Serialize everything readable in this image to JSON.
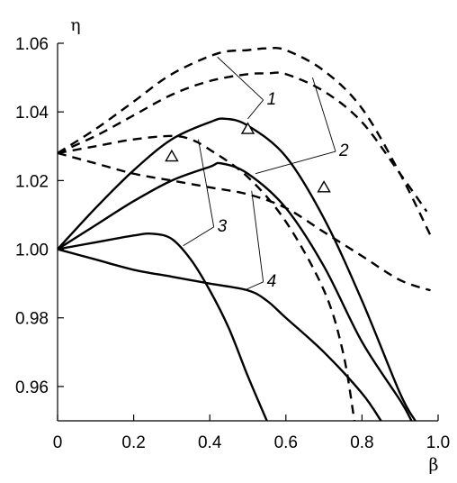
{
  "chart_data": {
    "type": "line",
    "title": "",
    "xlabel": "β",
    "ylabel": "η",
    "xlim": [
      0,
      1.0
    ],
    "ylim": [
      0.95,
      1.06
    ],
    "x_ticks": [
      0,
      0.2,
      0.4,
      0.6,
      0.8,
      1.0
    ],
    "x_tick_labels": [
      "0",
      "0.2",
      "0.4",
      "0.6",
      "0.8",
      "1.0"
    ],
    "y_ticks": [
      0.96,
      0.98,
      1.0,
      1.02,
      1.04,
      1.06
    ],
    "y_tick_labels": [
      "0.96",
      "0.98",
      "1.00",
      "1.02",
      "1.04",
      "1.06"
    ],
    "grid": false,
    "legend": "none",
    "series": [
      {
        "label": "1",
        "style": "solid",
        "x": [
          0,
          0.1,
          0.2,
          0.3,
          0.4,
          0.44,
          0.5,
          0.6,
          0.7,
          0.8,
          0.9,
          0.94
        ],
        "y": [
          1.0,
          1.012,
          1.023,
          1.032,
          1.037,
          1.038,
          1.036,
          1.027,
          1.009,
          0.985,
          0.958,
          0.95
        ]
      },
      {
        "label": "1",
        "style": "dashed",
        "x": [
          0,
          0.1,
          0.2,
          0.3,
          0.42,
          0.5,
          0.55,
          0.6,
          0.7,
          0.8,
          0.9,
          0.98
        ],
        "y": [
          1.028,
          1.035,
          1.043,
          1.051,
          1.057,
          1.058,
          1.0585,
          1.058,
          1.052,
          1.041,
          1.022,
          1.004
        ]
      },
      {
        "label": "2",
        "style": "solid",
        "x": [
          0,
          0.1,
          0.2,
          0.3,
          0.4,
          0.43,
          0.5,
          0.6,
          0.7,
          0.8,
          0.9,
          0.93
        ],
        "y": [
          1.0,
          1.007,
          1.014,
          1.02,
          1.024,
          1.025,
          1.022,
          1.012,
          0.995,
          0.973,
          0.956,
          0.95
        ]
      },
      {
        "label": "2",
        "style": "dashed",
        "x": [
          0,
          0.1,
          0.2,
          0.3,
          0.4,
          0.5,
          0.55,
          0.6,
          0.7,
          0.8,
          0.9,
          0.97
        ],
        "y": [
          1.028,
          1.033,
          1.039,
          1.045,
          1.049,
          1.051,
          1.0512,
          1.051,
          1.046,
          1.037,
          1.022,
          1.011
        ]
      },
      {
        "label": "3",
        "style": "solid",
        "x": [
          0,
          0.1,
          0.2,
          0.25,
          0.3,
          0.35,
          0.4,
          0.45,
          0.5,
          0.55
        ],
        "y": [
          1.0,
          1.002,
          1.004,
          1.0045,
          1.003,
          0.997,
          0.988,
          0.977,
          0.963,
          0.95
        ]
      },
      {
        "label": "3",
        "style": "dashed",
        "x": [
          0,
          0.1,
          0.2,
          0.3,
          0.35,
          0.4,
          0.5,
          0.6,
          0.7,
          0.75,
          0.78
        ],
        "y": [
          1.028,
          1.03,
          1.032,
          1.033,
          1.032,
          1.029,
          1.021,
          1.008,
          0.988,
          0.97,
          0.95
        ]
      },
      {
        "label": "4",
        "style": "solid",
        "x": [
          0,
          0.1,
          0.2,
          0.3,
          0.4,
          0.5,
          0.55,
          0.6,
          0.7,
          0.8,
          0.85
        ],
        "y": [
          1.0,
          0.997,
          0.994,
          0.992,
          0.99,
          0.988,
          0.985,
          0.98,
          0.97,
          0.958,
          0.95
        ]
      },
      {
        "label": "4",
        "style": "dashed",
        "x": [
          0,
          0.1,
          0.2,
          0.3,
          0.4,
          0.5,
          0.6,
          0.7,
          0.8,
          0.9,
          0.98
        ],
        "y": [
          1.028,
          1.025,
          1.022,
          1.02,
          1.018,
          1.016,
          1.012,
          1.005,
          0.998,
          0.991,
          0.988
        ]
      }
    ],
    "markers": {
      "shape": "triangle",
      "points": [
        {
          "x": 0.3,
          "y": 1.027
        },
        {
          "x": 0.5,
          "y": 1.035
        },
        {
          "x": 0.7,
          "y": 1.018
        }
      ]
    },
    "curve_labels": [
      {
        "text": "1",
        "x": 0.55,
        "y": 1.044,
        "leaders": [
          {
            "x": 0.42,
            "y": 1.056
          },
          {
            "x": 0.5,
            "y": 1.038
          }
        ]
      },
      {
        "text": "2",
        "x": 0.74,
        "y": 1.029,
        "leaders": [
          {
            "x": 0.67,
            "y": 1.05
          },
          {
            "x": 0.52,
            "y": 1.022
          }
        ]
      },
      {
        "text": "3",
        "x": 0.42,
        "y": 1.007,
        "leaders": [
          {
            "x": 0.37,
            "y": 1.032
          },
          {
            "x": 0.33,
            "y": 1.001
          }
        ]
      },
      {
        "text": "4",
        "x": 0.55,
        "y": 0.991,
        "leaders": [
          {
            "x": 0.51,
            "y": 1.017
          },
          {
            "x": 0.49,
            "y": 0.988
          }
        ]
      }
    ]
  }
}
